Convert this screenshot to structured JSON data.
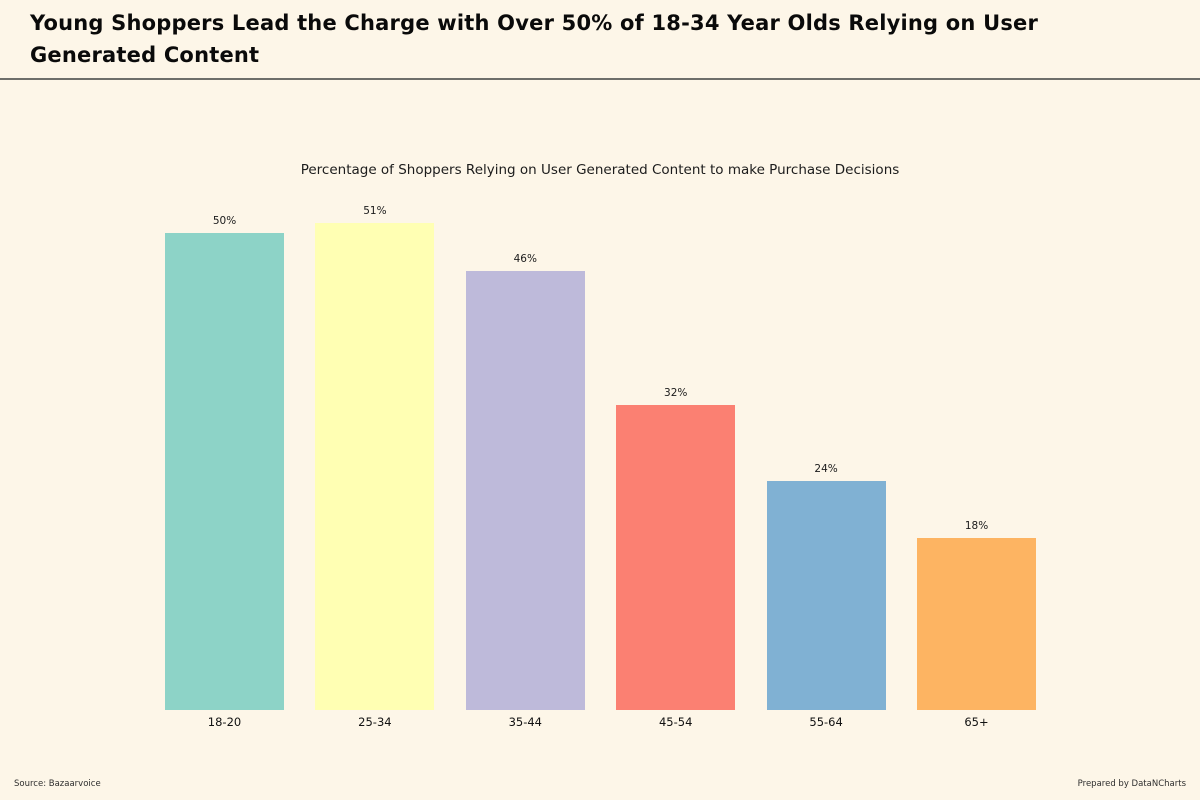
{
  "page": {
    "background": "#fdf6e8",
    "title_line1": "Young Shoppers Lead the Charge with Over 50% of 18-34 Year Olds Relying on User",
    "title_line2": "Generated Content",
    "footer_left": "Source: Bazaarvoice",
    "footer_right": "Prepared by DataNCharts"
  },
  "chart_data": {
    "type": "bar",
    "title": "Percentage of Shoppers Relying on User Generated Content to make Purchase Decisions",
    "categories": [
      "18-20",
      "25-34",
      "35-44",
      "45-54",
      "55-64",
      "65+"
    ],
    "values": [
      50,
      51,
      46,
      32,
      24,
      18
    ],
    "value_labels": [
      "50%",
      "51%",
      "46%",
      "32%",
      "24%",
      "18%"
    ],
    "bar_colors": [
      "#8dd3c7",
      "#ffffb3",
      "#bebada",
      "#fb8072",
      "#80b1d3",
      "#fdb462"
    ],
    "xlabel": "",
    "ylabel": "",
    "ylim": [
      0,
      51
    ],
    "grid": false,
    "legend": false,
    "value_labels_position": "above-bars"
  }
}
